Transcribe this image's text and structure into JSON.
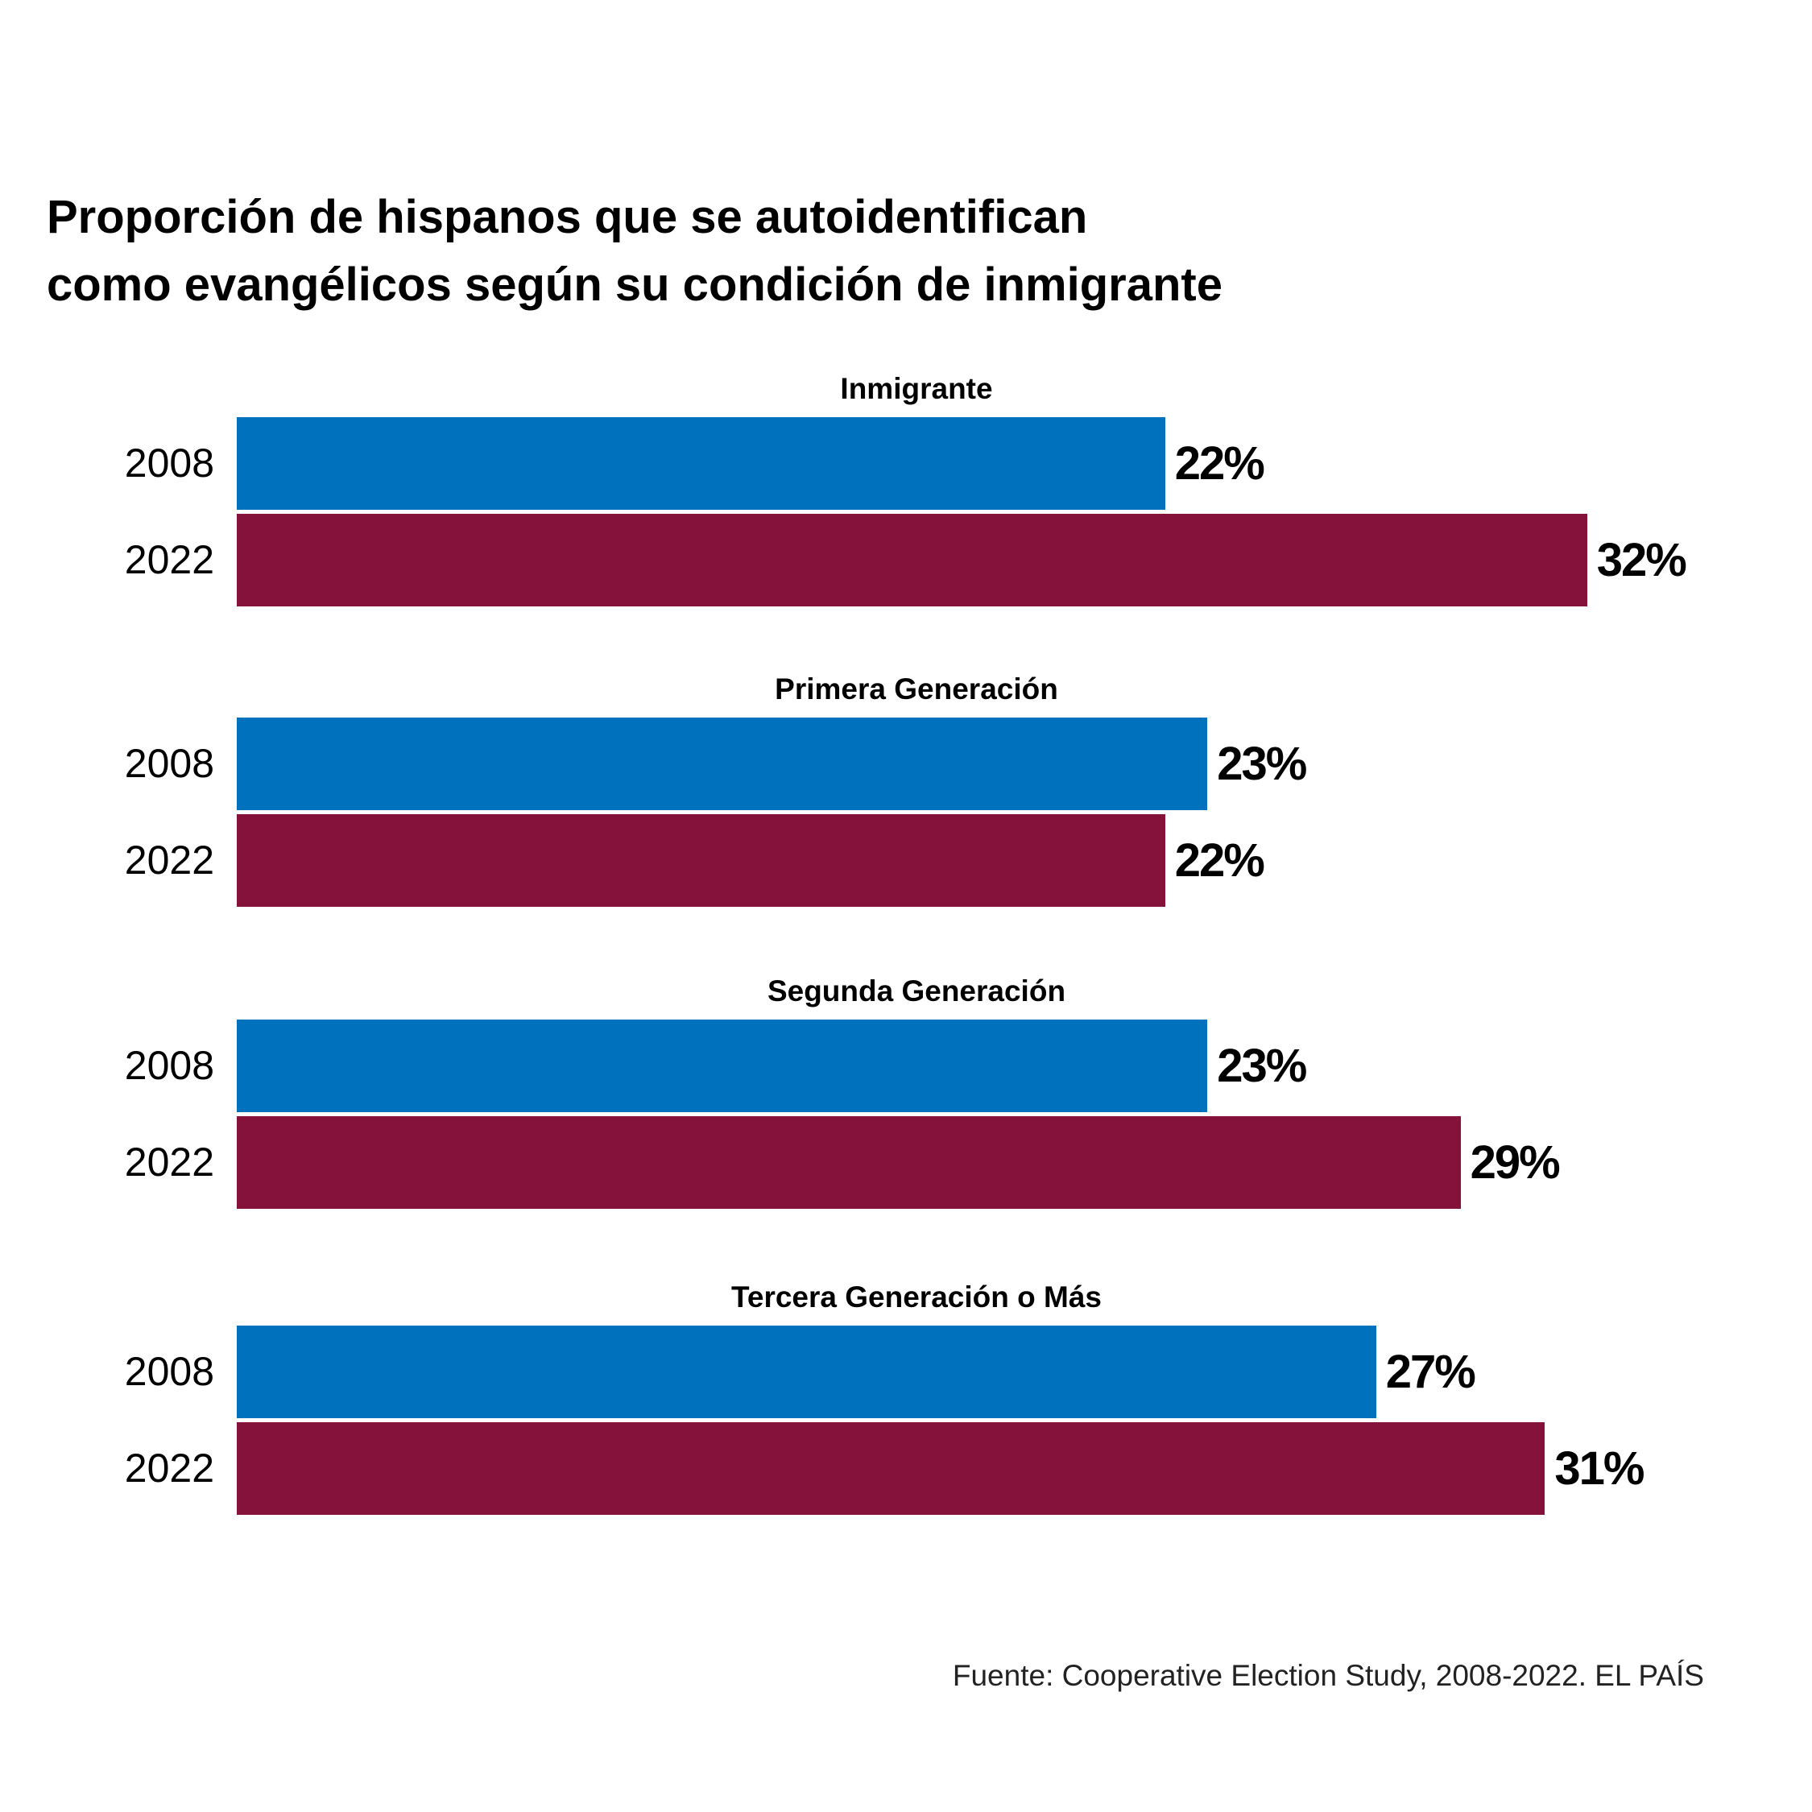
{
  "chart_data": {
    "type": "bar",
    "orientation": "horizontal",
    "title": "Proporción de hispanos que se autoidentifican como evangélicos según su condición de inmigrante",
    "title_lines": [
      "Proporción de hispanos que se autoidentifican",
      "como evangélicos según su condición de inmigrante"
    ],
    "unit": "%",
    "grid": false,
    "groups": [
      {
        "label": "Inmigrante",
        "bars": [
          {
            "year": "2008",
            "value": 22,
            "label": "22%"
          },
          {
            "year": "2022",
            "value": 32,
            "label": "32%"
          }
        ]
      },
      {
        "label": "Primera Generación",
        "bars": [
          {
            "year": "2008",
            "value": 23,
            "label": "23%"
          },
          {
            "year": "2022",
            "value": 22,
            "label": "22%"
          }
        ]
      },
      {
        "label": "Segunda Generación",
        "bars": [
          {
            "year": "2008",
            "value": 23,
            "label": "23%"
          },
          {
            "year": "2022",
            "value": 29,
            "label": "29%"
          }
        ]
      },
      {
        "label": "Tercera Generación o Más",
        "bars": [
          {
            "year": "2008",
            "value": 27,
            "label": "27%"
          },
          {
            "year": "2022",
            "value": 31,
            "label": "31%"
          }
        ]
      }
    ],
    "colors": {
      "2008": "#0071BC",
      "2022": "#84123A"
    },
    "source": "Fuente: Cooperative Election Study, 2008-2022. EL PAÍS"
  }
}
